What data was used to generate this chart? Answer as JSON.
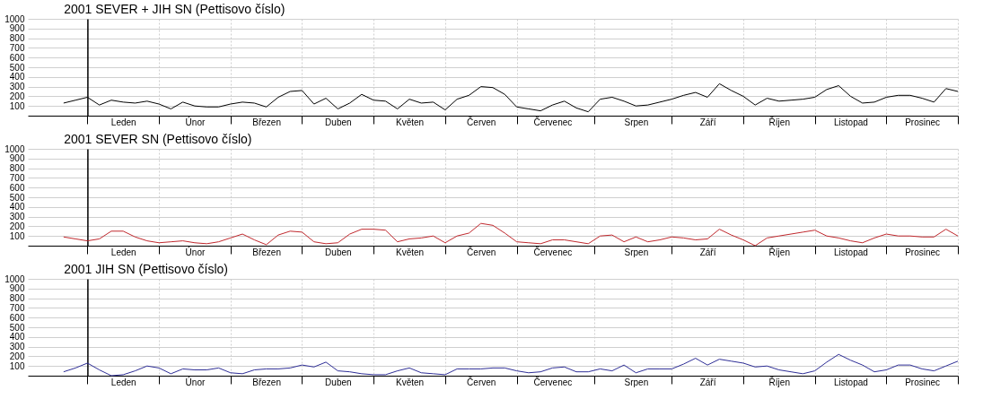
{
  "chart_data": [
    {
      "type": "line",
      "title": "2001   SEVER + JIH   SN  (Pettisovo číslo)",
      "categories": [
        null,
        null,
        null,
        null,
        null,
        null,
        null,
        null,
        "Leden",
        null,
        null,
        null,
        null,
        null,
        "Únor",
        null,
        null,
        null,
        null,
        null,
        "Březen",
        null,
        null,
        null,
        null,
        null,
        "Duben",
        null,
        null,
        null,
        null,
        null,
        "Květen",
        null,
        null,
        null,
        null,
        null,
        "Červen",
        null,
        null,
        null,
        null,
        null,
        "Červenec",
        null,
        null,
        null,
        null,
        null,
        null,
        "Srpen",
        null,
        null,
        null,
        null,
        null,
        "Září",
        null,
        null,
        null,
        null,
        null,
        "Říjen",
        null,
        null,
        null,
        null,
        null,
        "Listopad",
        null,
        null,
        null,
        null,
        null,
        "Prosinec",
        null,
        null,
        null
      ],
      "series": [
        {
          "color": "#000000",
          "values": [
            null,
            null,
            null,
            130,
            160,
            190,
            110,
            160,
            140,
            130,
            150,
            120,
            70,
            140,
            100,
            90,
            90,
            120,
            140,
            130,
            90,
            190,
            250,
            260,
            120,
            180,
            70,
            130,
            220,
            160,
            150,
            70,
            170,
            130,
            140,
            60,
            170,
            210,
            300,
            290,
            220,
            90,
            70,
            50,
            110,
            150,
            80,
            40,
            170,
            190,
            150,
            100,
            110,
            140,
            170,
            210,
            240,
            190,
            330,
            260,
            200,
            110,
            180,
            150,
            160,
            170,
            190,
            270,
            310,
            200,
            130,
            140,
            190,
            210,
            210,
            180,
            140,
            280,
            250
          ]
        }
      ],
      "ylim": [
        0,
        1000
      ],
      "yticks": [
        100,
        200,
        300,
        400,
        500,
        600,
        700,
        800,
        900,
        1000
      ],
      "grid": true
    },
    {
      "type": "line",
      "title": "2001   SEVER   SN  (Pettisovo číslo)",
      "categories": [
        null,
        null,
        null,
        null,
        null,
        null,
        null,
        null,
        "Leden",
        null,
        null,
        null,
        null,
        null,
        "Únor",
        null,
        null,
        null,
        null,
        null,
        "Březen",
        null,
        null,
        null,
        null,
        null,
        "Duben",
        null,
        null,
        null,
        null,
        null,
        "Květen",
        null,
        null,
        null,
        null,
        null,
        "Červen",
        null,
        null,
        null,
        null,
        null,
        "Červenec",
        null,
        null,
        null,
        null,
        null,
        null,
        "Srpen",
        null,
        null,
        null,
        null,
        null,
        "Září",
        null,
        null,
        null,
        null,
        null,
        "Říjen",
        null,
        null,
        null,
        null,
        null,
        "Listopad",
        null,
        null,
        null,
        null,
        null,
        "Prosinec",
        null,
        null,
        null
      ],
      "series": [
        {
          "color": "#c0282d",
          "values": [
            null,
            null,
            null,
            90,
            70,
            50,
            70,
            150,
            150,
            90,
            50,
            30,
            40,
            50,
            30,
            20,
            40,
            80,
            120,
            60,
            10,
            110,
            150,
            140,
            40,
            20,
            30,
            120,
            170,
            170,
            160,
            40,
            70,
            80,
            100,
            30,
            100,
            130,
            230,
            210,
            130,
            40,
            30,
            20,
            60,
            60,
            40,
            20,
            100,
            110,
            40,
            90,
            40,
            60,
            90,
            80,
            60,
            70,
            170,
            110,
            60,
            0,
            80,
            100,
            120,
            140,
            160,
            100,
            80,
            50,
            30,
            80,
            120,
            100,
            100,
            90,
            90,
            170,
            100
          ]
        }
      ],
      "ylim": [
        0,
        1000
      ],
      "yticks": [
        100,
        200,
        300,
        400,
        500,
        600,
        700,
        800,
        900,
        1000
      ],
      "grid": true
    },
    {
      "type": "line",
      "title": "2001   JIH   SN  (Pettisovo číslo)",
      "categories": [
        null,
        null,
        null,
        null,
        null,
        null,
        null,
        null,
        "Leden",
        null,
        null,
        null,
        null,
        null,
        "Únor",
        null,
        null,
        null,
        null,
        null,
        "Březen",
        null,
        null,
        null,
        null,
        null,
        "Duben",
        null,
        null,
        null,
        null,
        null,
        "Květen",
        null,
        null,
        null,
        null,
        null,
        "Červen",
        null,
        null,
        null,
        null,
        null,
        "Červenec",
        null,
        null,
        null,
        null,
        null,
        null,
        "Srpen",
        null,
        null,
        null,
        null,
        null,
        "Září",
        null,
        null,
        null,
        null,
        null,
        "Říjen",
        null,
        null,
        null,
        null,
        null,
        "Listopad",
        null,
        null,
        null,
        null,
        null,
        "Prosinec",
        null,
        null,
        null
      ],
      "series": [
        {
          "color": "#2e2e96",
          "values": [
            null,
            null,
            null,
            40,
            80,
            130,
            60,
            0,
            10,
            50,
            100,
            80,
            20,
            70,
            60,
            60,
            80,
            30,
            20,
            60,
            70,
            70,
            80,
            110,
            90,
            140,
            50,
            40,
            20,
            10,
            10,
            50,
            80,
            30,
            20,
            10,
            70,
            70,
            70,
            80,
            80,
            50,
            30,
            40,
            80,
            90,
            40,
            40,
            70,
            50,
            110,
            30,
            70,
            70,
            70,
            120,
            180,
            110,
            170,
            150,
            130,
            90,
            100,
            60,
            40,
            20,
            50,
            140,
            220,
            160,
            110,
            40,
            60,
            110,
            110,
            70,
            50,
            100,
            150
          ]
        }
      ],
      "ylim": [
        0,
        1000
      ],
      "yticks": [
        100,
        200,
        300,
        400,
        500,
        600,
        700,
        800,
        900,
        1000
      ],
      "grid": true
    }
  ]
}
